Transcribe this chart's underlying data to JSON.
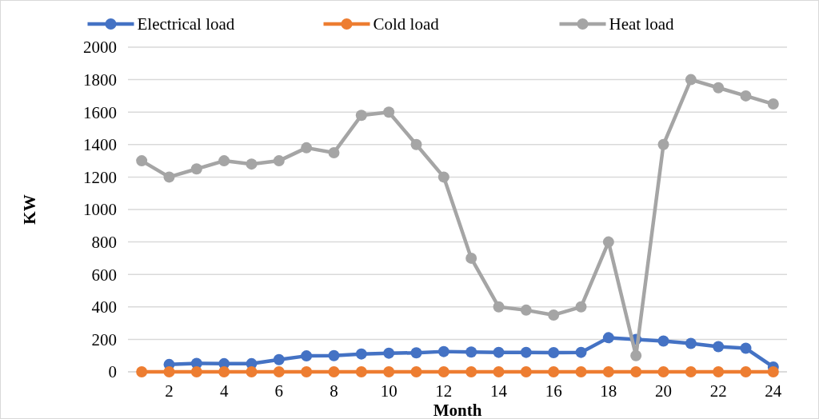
{
  "chart_data": {
    "type": "line",
    "xlabel": "Month",
    "ylabel": "KW",
    "x": [
      1,
      2,
      3,
      4,
      5,
      6,
      7,
      8,
      9,
      10,
      11,
      12,
      13,
      14,
      15,
      16,
      17,
      18,
      19,
      20,
      21,
      22,
      23,
      24
    ],
    "xlim": [
      0.5,
      24.5
    ],
    "xticks": [
      2,
      4,
      6,
      8,
      10,
      12,
      14,
      16,
      18,
      20,
      22,
      24
    ],
    "series": [
      {
        "name": "Electrical load",
        "color": "#4472c4",
        "values": [
          null,
          45,
          52,
          50,
          50,
          75,
          98,
          100,
          110,
          115,
          117,
          125,
          122,
          120,
          120,
          118,
          120,
          210,
          200,
          190,
          175,
          155,
          145,
          30
        ]
      },
      {
        "name": "Cold load",
        "color": "#ed7d31",
        "values": [
          0,
          0,
          0,
          0,
          0,
          0,
          0,
          0,
          0,
          0,
          0,
          0,
          0,
          0,
          0,
          0,
          0,
          0,
          0,
          0,
          0,
          0,
          0,
          0
        ]
      },
      {
        "name": "Heat load",
        "color": "#a5a5a5",
        "values": [
          1300,
          1200,
          1250,
          1300,
          1280,
          1300,
          1380,
          1350,
          1580,
          1600,
          1400,
          1200,
          700,
          400,
          380,
          350,
          400,
          800,
          100,
          1400,
          1800,
          1750,
          1700,
          1650
        ]
      }
    ],
    "ylim": [
      0,
      2000
    ],
    "yticks": [
      0,
      200,
      400,
      600,
      800,
      1000,
      1200,
      1400,
      1600,
      1800,
      2000
    ],
    "grid": "y",
    "legend": "top",
    "marker": "circle",
    "line_style": "solid"
  }
}
